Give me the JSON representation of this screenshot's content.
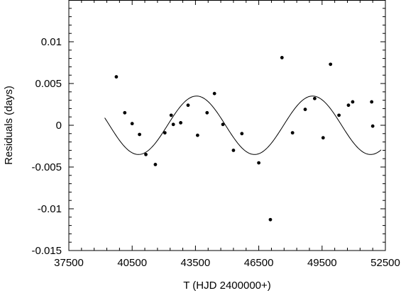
{
  "chart_data": {
    "type": "scatter",
    "title": "",
    "xlabel": "T (HJD 2400000+)",
    "ylabel": "Residuals (days)",
    "xlim": [
      37500,
      52500
    ],
    "ylim": [
      -0.015,
      0.015
    ],
    "x_ticks": [
      37500,
      40500,
      43500,
      46500,
      49500,
      52500
    ],
    "x_tick_labels": [
      "37500",
      "40500",
      "43500",
      "46500",
      "49500",
      "52500"
    ],
    "y_ticks": [
      0.01,
      0.005,
      0,
      -0.005,
      -0.01,
      -0.015
    ],
    "y_tick_labels": [
      "0.01",
      "0.005",
      "0",
      "-0.005",
      "-0.01",
      "-0.015"
    ],
    "grid": false,
    "legend": "none",
    "series": [
      {
        "kind": "points",
        "points": [
          [
            39750,
            0.0058
          ],
          [
            40150,
            0.0015
          ],
          [
            40500,
            0.0002
          ],
          [
            40850,
            -0.0011
          ],
          [
            41150,
            -0.0035
          ],
          [
            41600,
            -0.0047
          ],
          [
            42050,
            -0.0009
          ],
          [
            42350,
            0.0012
          ],
          [
            42450,
            0.0001
          ],
          [
            42800,
            0.0003
          ],
          [
            43150,
            0.0024
          ],
          [
            43600,
            -0.0012
          ],
          [
            44050,
            0.0015
          ],
          [
            44400,
            0.0038
          ],
          [
            44800,
            0.0001
          ],
          [
            45300,
            -0.003
          ],
          [
            45700,
            -0.001
          ],
          [
            46500,
            -0.0045
          ],
          [
            47050,
            -0.0113
          ],
          [
            47600,
            0.0081
          ],
          [
            48100,
            -0.0009
          ],
          [
            48700,
            0.0019
          ],
          [
            49150,
            0.0032
          ],
          [
            49550,
            -0.0015
          ],
          [
            49900,
            0.0073
          ],
          [
            50300,
            0.0012
          ],
          [
            50750,
            0.0024
          ],
          [
            50950,
            0.0028
          ],
          [
            51850,
            0.0028
          ],
          [
            51900,
            -0.0001
          ]
        ]
      },
      {
        "kind": "fit",
        "curve": "sinusoid",
        "amplitude": 0.0035,
        "period": 5500,
        "peak_at": 49050,
        "x_range": [
          39200,
          52300
        ]
      }
    ]
  }
}
